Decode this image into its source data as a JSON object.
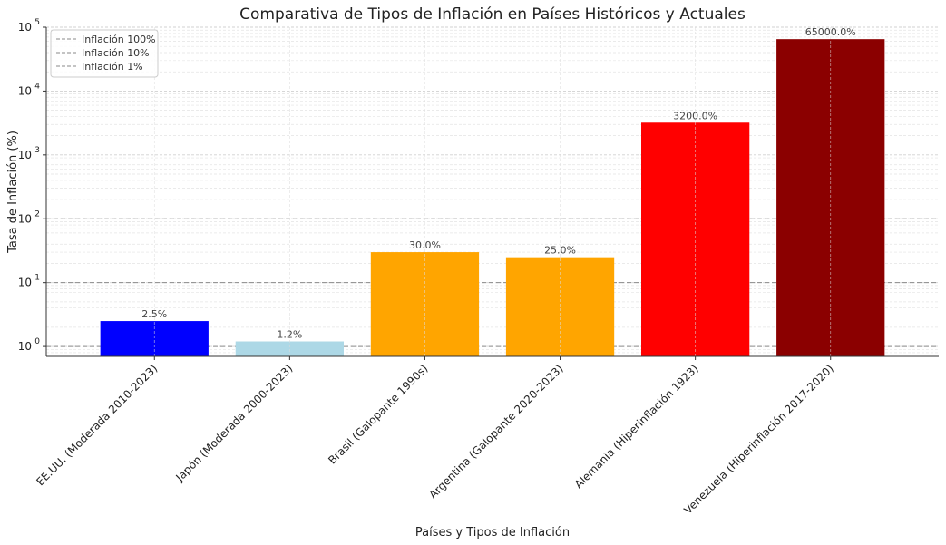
{
  "chart_data": {
    "type": "bar",
    "title": "Comparativa de Tipos de Inflación en Países Históricos y Actuales",
    "xlabel": "Países y Tipos de Inflación",
    "ylabel": "Tasa de Inflación (%)",
    "y_scale": "log",
    "ylim": [
      0.7,
      100000
    ],
    "y_ticks": [
      {
        "value": 1,
        "base": "10",
        "exp": "0"
      },
      {
        "value": 10,
        "base": "10",
        "exp": "1"
      },
      {
        "value": 100,
        "base": "10",
        "exp": "2"
      },
      {
        "value": 1000,
        "base": "10",
        "exp": "3"
      },
      {
        "value": 10000,
        "base": "10",
        "exp": "4"
      },
      {
        "value": 100000,
        "base": "10",
        "exp": "5"
      }
    ],
    "grid": true,
    "categories": [
      "EE.UU. (Moderada 2010-2023)",
      "Japón (Moderada 2000-2023)",
      "Brasil (Galopante 1990s)",
      "Argentina (Galopante 2020-2023)",
      "Alemania (Hiperinflación 1923)",
      "Venezuela (Hiperinflación 2017-2020)"
    ],
    "values": [
      2.5,
      1.2,
      30.0,
      25.0,
      3200.0,
      65000.0
    ],
    "value_labels": [
      "2.5%",
      "1.2%",
      "30.0%",
      "25.0%",
      "3200.0%",
      "65000.0%"
    ],
    "bar_colors": [
      "#0000ff",
      "#add8e6",
      "#ffa500",
      "#ffa500",
      "#ff0000",
      "#8b0000"
    ],
    "reference_lines": [
      {
        "label": "Inflación 100%",
        "value": 100
      },
      {
        "label": "Inflación 10%",
        "value": 10
      },
      {
        "label": "Inflación 1%",
        "value": 1
      }
    ],
    "legend_position": "top-left"
  }
}
